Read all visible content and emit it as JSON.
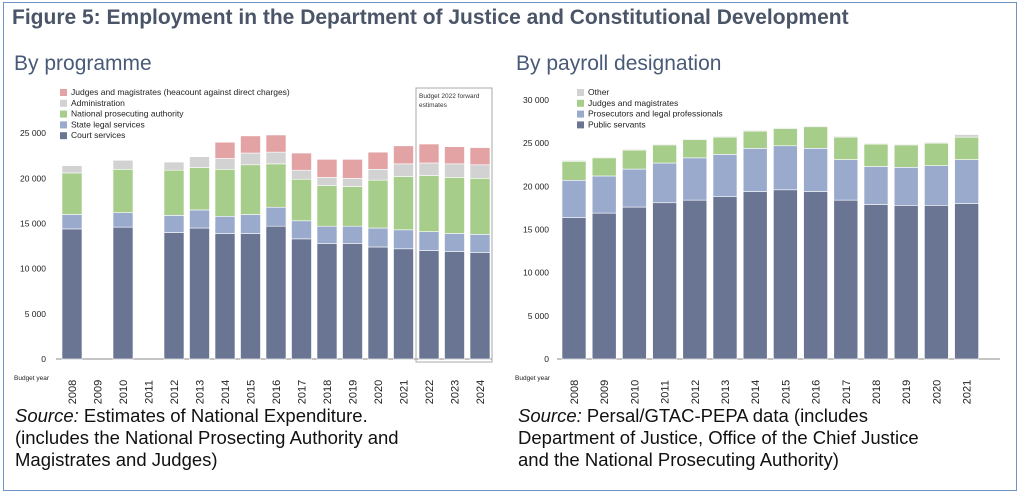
{
  "figure_title": "Figure 5: Employment in the Department of Justice and Constitutional Development",
  "colors": {
    "frame": "#6f93c4",
    "title": "#4a5568",
    "panel_title": "#485a78",
    "series": {
      "court_services": "#6a7594",
      "state_legal": "#99aacd",
      "npa": "#a6cd8a",
      "administration": "#d2d2d2",
      "judges_magistrates": "#e3a3a5",
      "public_servants": "#6a7594",
      "prosecutors": "#99aacd",
      "judges_magistrates_payroll": "#a6cd8a",
      "other": "#d2d2d2"
    }
  },
  "left_panel": {
    "title": "By programme",
    "source_label": "Source:",
    "source_lines": [
      " Estimates of National Expenditure.",
      "(includes the National Prosecting Authority and",
      "Magistrates and Judges)"
    ]
  },
  "right_panel": {
    "title": "By payroll designation",
    "source_label": "Source:",
    "source_lines": [
      " Persal/GTAC-PEPA data (includes",
      "Department of Justice, Office of the Chief Justice",
      "and the National Prosecuting Authority)"
    ]
  },
  "chart_data": [
    {
      "type": "bar",
      "stacked": true,
      "title": "By programme",
      "xlabel": "Budget year",
      "categories": [
        "2008",
        "2009",
        "2010",
        "2011",
        "2012",
        "2013",
        "2014",
        "2015",
        "2016",
        "2017",
        "2018",
        "2019",
        "2020",
        "2021",
        "2022",
        "2023",
        "2024"
      ],
      "ylim": [
        0,
        30000
      ],
      "yticks": [
        0,
        5000,
        10000,
        15000,
        20000,
        25000
      ],
      "ytick_labels": [
        "0",
        "5 000",
        "10 000",
        "15 000",
        "20 000",
        "25 000"
      ],
      "legend_position": "top-left",
      "annotation": {
        "text": [
          "Budget 2022 forward",
          "estimates"
        ],
        "covers_categories": [
          "2022",
          "2023",
          "2024"
        ]
      },
      "series": [
        {
          "name": "Court services",
          "color_key": "court_services",
          "values": [
            14400,
            null,
            14600,
            null,
            14000,
            14500,
            13900,
            13900,
            14700,
            13300,
            12800,
            12800,
            12400,
            12200,
            12000,
            11900,
            11800
          ]
        },
        {
          "name": "State legal services",
          "color_key": "state_legal",
          "values": [
            1600,
            null,
            1600,
            null,
            1900,
            2000,
            1900,
            2100,
            2100,
            2000,
            1900,
            1900,
            2100,
            2100,
            2100,
            2000,
            2000
          ]
        },
        {
          "name": "National prosecuting authority",
          "color_key": "npa",
          "values": [
            4600,
            null,
            4800,
            null,
            5000,
            4700,
            5200,
            5500,
            4800,
            4600,
            4500,
            4400,
            5300,
            5900,
            6200,
            6200,
            6200
          ]
        },
        {
          "name": "Administration",
          "color_key": "administration",
          "values": [
            800,
            null,
            1000,
            null,
            900,
            1200,
            1200,
            1300,
            1300,
            1000,
            900,
            900,
            1200,
            1400,
            1400,
            1500,
            1500
          ]
        },
        {
          "name": "Judges and magistrates (heacount against direct charges)",
          "color_key": "judges_magistrates",
          "values": [
            null,
            null,
            null,
            null,
            null,
            null,
            1800,
            1900,
            1900,
            1900,
            2000,
            2100,
            1900,
            2000,
            2100,
            1900,
            1900
          ]
        }
      ]
    },
    {
      "type": "bar",
      "stacked": true,
      "title": "By payroll designation",
      "xlabel": "Budget year",
      "categories": [
        "2008",
        "2009",
        "2010",
        "2011",
        "2012",
        "2013",
        "2014",
        "2015",
        "2016",
        "2017",
        "2018",
        "2019",
        "2020",
        "2021"
      ],
      "ylim": [
        0,
        30000
      ],
      "yticks": [
        0,
        5000,
        10000,
        15000,
        20000,
        25000,
        30000
      ],
      "ytick_labels": [
        "0",
        "5 000",
        "10 000",
        "15 000",
        "20 000",
        "25 000",
        "30 000"
      ],
      "legend_position": "top-left",
      "series": [
        {
          "name": "Public servants",
          "color_key": "public_servants",
          "values": [
            16400,
            16900,
            17600,
            18100,
            18400,
            18800,
            19400,
            19600,
            19400,
            18400,
            17900,
            17800,
            17800,
            18000
          ]
        },
        {
          "name": "Prosecutors and legal professionals",
          "color_key": "prosecutors",
          "values": [
            4300,
            4300,
            4400,
            4600,
            4900,
            4900,
            5000,
            5100,
            5000,
            4700,
            4400,
            4400,
            4600,
            5100
          ]
        },
        {
          "name": "Judges and magistrates",
          "color_key": "judges_magistrates_payroll",
          "values": [
            2200,
            2100,
            2200,
            2100,
            2100,
            2000,
            2000,
            2000,
            2500,
            2600,
            2600,
            2600,
            2600,
            2600
          ]
        },
        {
          "name": "Other",
          "color_key": "other",
          "values": [
            100,
            100,
            100,
            100,
            100,
            100,
            100,
            100,
            100,
            100,
            100,
            100,
            100,
            300
          ]
        }
      ]
    }
  ]
}
